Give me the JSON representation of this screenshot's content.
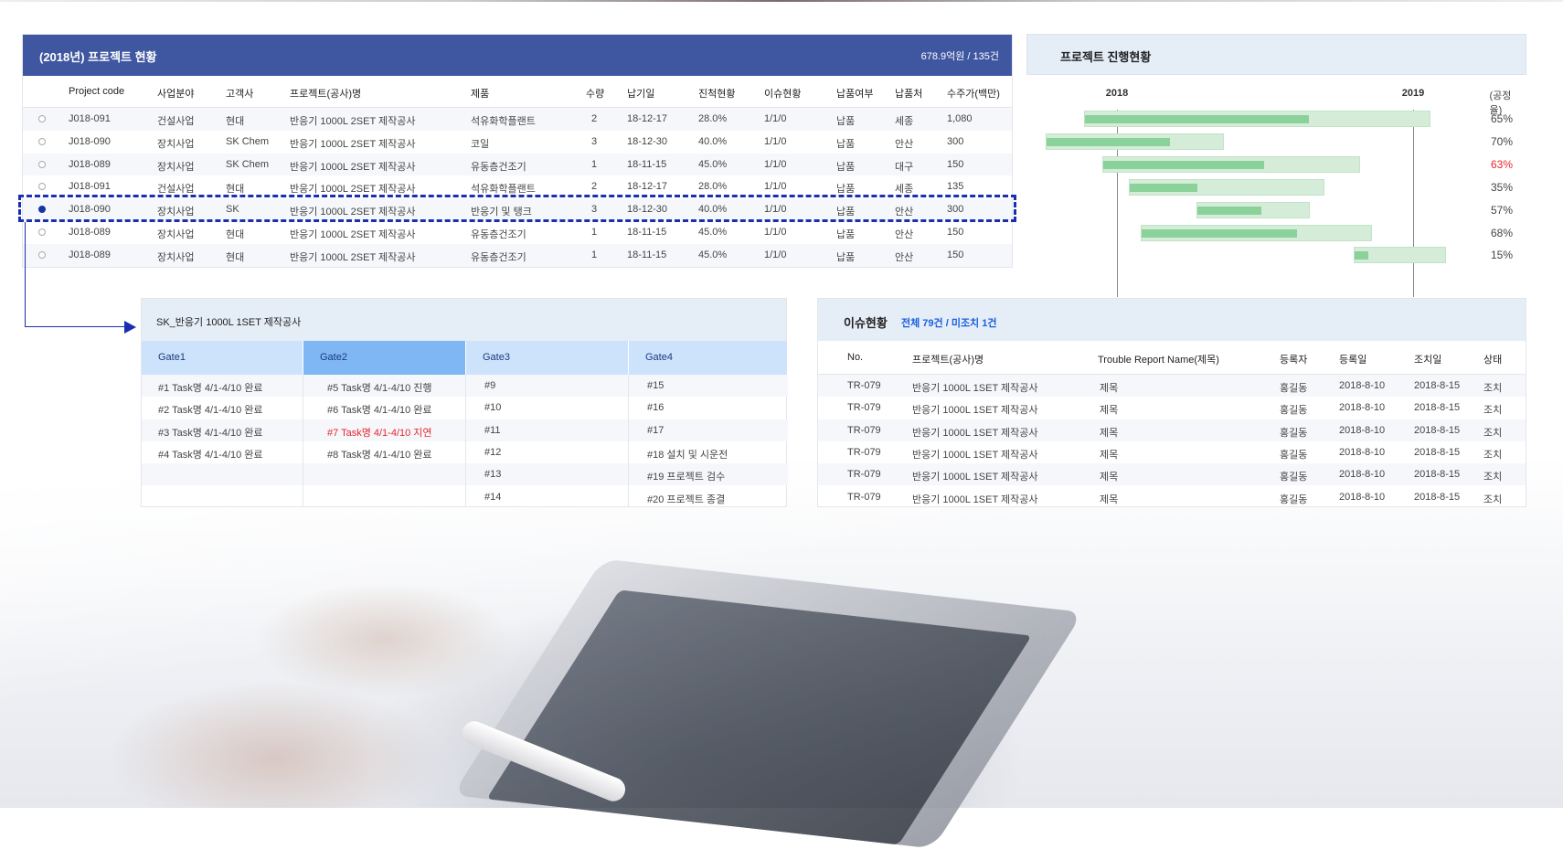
{
  "project_table": {
    "title": "(2018년) 프로젝트 현황",
    "summary": "678.9억원 / 135건",
    "columns": [
      "Project code",
      "사업분야",
      "고객사",
      "프로젝트(공사)명",
      "제품",
      "수량",
      "납기일",
      "진척현황",
      "이슈현황",
      "납품여부",
      "납품처",
      "수주가(백만)"
    ],
    "selected_index": 4,
    "rows": [
      [
        "J018-091",
        "건설사업",
        "현대",
        "반응기 1000L 2SET 제작공사",
        "석유화학플랜트",
        "2",
        "18-12-17",
        "28.0%",
        "1/1/0",
        "납품",
        "세종",
        "1,080"
      ],
      [
        "J018-090",
        "장치사업",
        "SK Chem",
        "반응기 1000L 2SET 제작공사",
        "코일",
        "3",
        "18-12-30",
        "40.0%",
        "1/1/0",
        "납품",
        "안산",
        "300"
      ],
      [
        "J018-089",
        "장치사업",
        "SK Chem",
        "반응기 1000L 2SET 제작공사",
        "유동층건조기",
        "1",
        "18-11-15",
        "45.0%",
        "1/1/0",
        "납품",
        "대구",
        "150"
      ],
      [
        "J018-091",
        "건설사업",
        "현대",
        "반응기 1000L 2SET 제작공사",
        "석유화학플랜트",
        "2",
        "18-12-17",
        "28.0%",
        "1/1/0",
        "납품",
        "세종",
        "135"
      ],
      [
        "J018-090",
        "장치사업",
        "SK",
        "반응기 1000L 2SET 제작공사",
        "반응기 및 탱크",
        "3",
        "18-12-30",
        "40.0%",
        "1/1/0",
        "납품",
        "안산",
        "300"
      ],
      [
        "J018-089",
        "장치사업",
        "현대",
        "반응기 1000L 2SET 제작공사",
        "유동층건조기",
        "1",
        "18-11-15",
        "45.0%",
        "1/1/0",
        "납품",
        "안산",
        "150"
      ],
      [
        "J018-089",
        "장치사업",
        "현대",
        "반응기 1000L 2SET 제작공사",
        "유동층건조기",
        "1",
        "18-11-15",
        "45.0%",
        "1/1/0",
        "납품",
        "안산",
        "150"
      ]
    ]
  },
  "gantt": {
    "title": "프로젝트 진행현황",
    "years": [
      "2018",
      "2019"
    ],
    "rate_label": "(공정율)",
    "colors": {
      "track": "#d4ecd8",
      "fill": "#8ad29a",
      "alert": "#e8262c"
    },
    "bars": [
      {
        "start": 2017.89,
        "end": 2019.06,
        "progress": 65,
        "label": "65%",
        "alert": false
      },
      {
        "start": 2017.76,
        "end": 2018.36,
        "progress": 70,
        "label": "70%",
        "alert": false
      },
      {
        "start": 2017.95,
        "end": 2018.82,
        "progress": 63,
        "label": "63%",
        "alert": true
      },
      {
        "start": 2018.04,
        "end": 2018.7,
        "progress": 35,
        "label": "35%",
        "alert": false
      },
      {
        "start": 2018.27,
        "end": 2018.65,
        "progress": 57,
        "label": "57%",
        "alert": false
      },
      {
        "start": 2018.08,
        "end": 2018.86,
        "progress": 68,
        "label": "68%",
        "alert": false
      },
      {
        "start": 2018.8,
        "end": 2019.11,
        "progress": 15,
        "label": "15%",
        "alert": false
      }
    ]
  },
  "gate_panel": {
    "title": "SK_반응기 1000L 1SET 제작공사",
    "active_gate": 1,
    "gates": [
      {
        "name": "Gate1",
        "items": [
          {
            "text": "#1 Task명 4/1-4/10 완료"
          },
          {
            "text": "#2 Task명 4/1-4/10 완료"
          },
          {
            "text": "#3 Task명 4/1-4/10 완료"
          },
          {
            "text": "#4 Task명 4/1-4/10 완료"
          }
        ]
      },
      {
        "name": "Gate2",
        "items": [
          {
            "text": "#5 Task명 4/1-4/10 진행"
          },
          {
            "text": "#6 Task명 4/1-4/10 완료"
          },
          {
            "text": "#7 Task명 4/1-4/10 지연",
            "alert": true
          },
          {
            "text": "#8 Task명 4/1-4/10 완료"
          }
        ]
      },
      {
        "name": "Gate3",
        "items": [
          {
            "text": "#9"
          },
          {
            "text": "#10"
          },
          {
            "text": "#11"
          },
          {
            "text": "#12"
          },
          {
            "text": "#13"
          },
          {
            "text": "#14"
          }
        ]
      },
      {
        "name": "Gate4",
        "items": [
          {
            "text": "#15"
          },
          {
            "text": "#16"
          },
          {
            "text": "#17"
          },
          {
            "text": "#18  설치 및 시운전"
          },
          {
            "text": "#19  프로젝트 검수"
          },
          {
            "text": "#20  프로젝트 종결"
          }
        ]
      }
    ]
  },
  "issue_panel": {
    "title": "이슈현황",
    "count": "전체 79건 /  미조치 1건",
    "columns": [
      "No.",
      "프로젝트(공사)명",
      "Trouble Report Name(제목)",
      "등록자",
      "등록일",
      "조치일",
      "상태"
    ],
    "rows": [
      [
        "TR-079",
        "반응기 1000L 1SET 제작공사",
        "제목",
        "홍길동",
        "2018-8-10",
        "2018-8-15",
        "조치"
      ],
      [
        "TR-079",
        "반응기 1000L 1SET 제작공사",
        "제목",
        "홍길동",
        "2018-8-10",
        "2018-8-15",
        "조치"
      ],
      [
        "TR-079",
        "반응기 1000L 1SET 제작공사",
        "제목",
        "홍길동",
        "2018-8-10",
        "2018-8-15",
        "조치"
      ],
      [
        "TR-079",
        "반응기 1000L 1SET 제작공사",
        "제목",
        "홍길동",
        "2018-8-10",
        "2018-8-15",
        "조치"
      ],
      [
        "TR-079",
        "반응기 1000L 1SET 제작공사",
        "제목",
        "홍길동",
        "2018-8-10",
        "2018-8-15",
        "조치"
      ],
      [
        "TR-079",
        "반응기 1000L 1SET 제작공사",
        "제목",
        "홍길동",
        "2018-8-10",
        "2018-8-15",
        "조치"
      ]
    ]
  }
}
